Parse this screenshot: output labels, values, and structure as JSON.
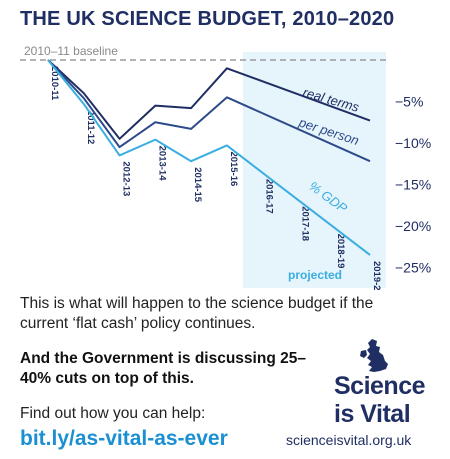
{
  "title": "THE UK SCIENCE BUDGET, 2010–2020",
  "chart_data": {
    "type": "line",
    "categories": [
      "2010-11",
      "2011-12",
      "2012-13",
      "2013-14",
      "2014-15",
      "2015-16",
      "2016-17",
      "2017-18",
      "2018-19",
      "2019-20"
    ],
    "baseline_label": "2010–11 baseline",
    "projected_label": "projected",
    "projected_from": "2015-16",
    "ylim": [
      -27,
      0
    ],
    "yticks": [
      -5,
      -10,
      -15,
      -20,
      -25
    ],
    "ytick_labels": [
      "−5%",
      "−10%",
      "−15%",
      "−20%",
      "−25%"
    ],
    "series": [
      {
        "name": "real terms",
        "color": "#1f2e63",
        "x": [
          "2010-11",
          "2011-12",
          "2012-13",
          "2013-14",
          "2014-15",
          "2015-16",
          "2019-20"
        ],
        "values": [
          0,
          -4,
          -9.5,
          -5.5,
          -5.8,
          -1,
          -7.3
        ]
      },
      {
        "name": "per person",
        "color": "#2d4a8a",
        "x": [
          "2010-11",
          "2011-12",
          "2012-13",
          "2013-14",
          "2014-15",
          "2015-16",
          "2019-20"
        ],
        "values": [
          0,
          -4.6,
          -10.5,
          -7.5,
          -8.3,
          -4.5,
          -12.2
        ]
      },
      {
        "name": "% GDP",
        "color": "#3aaee0",
        "x": [
          "2010-11",
          "2011-12",
          "2012-13",
          "2013-14",
          "2014-15",
          "2015-16",
          "2019-20"
        ],
        "values": [
          0,
          -5.3,
          -11.5,
          -9.6,
          -12.2,
          -10.3,
          -23.5
        ]
      }
    ],
    "colors": {
      "projected_band": "#e6f4fb",
      "baseline": "#9a9a9a",
      "axis_text": "#1f2e63"
    }
  },
  "body_text": "This is what will happen to the science budget if the current ‘flat cash’ policy continues.",
  "bold_text": "And the Government is discussing 25–40% cuts on top of this.",
  "help_text": "Find out how you can help:",
  "link_text": "bit.ly/as-vital-as-ever",
  "site_text": "scienceisvital.org.uk",
  "logo": {
    "line1": "Science",
    "line2": "is Vital",
    "icon": "uk-map-icon"
  }
}
